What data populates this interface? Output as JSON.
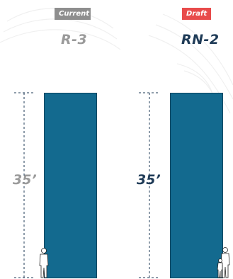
{
  "panels": [
    {
      "status_label": "Current",
      "zone_name": "R-3",
      "height_label": "35’",
      "status_color": "#8e8e8e",
      "zone_color": "#9a9a9a"
    },
    {
      "status_label": "Draft",
      "zone_name": "RN-2",
      "height_label": "35’",
      "status_color": "#e84b4b",
      "zone_color": "#1f3b57"
    }
  ],
  "building_color": "#136a8f",
  "guide_color": "#1f3b57"
}
